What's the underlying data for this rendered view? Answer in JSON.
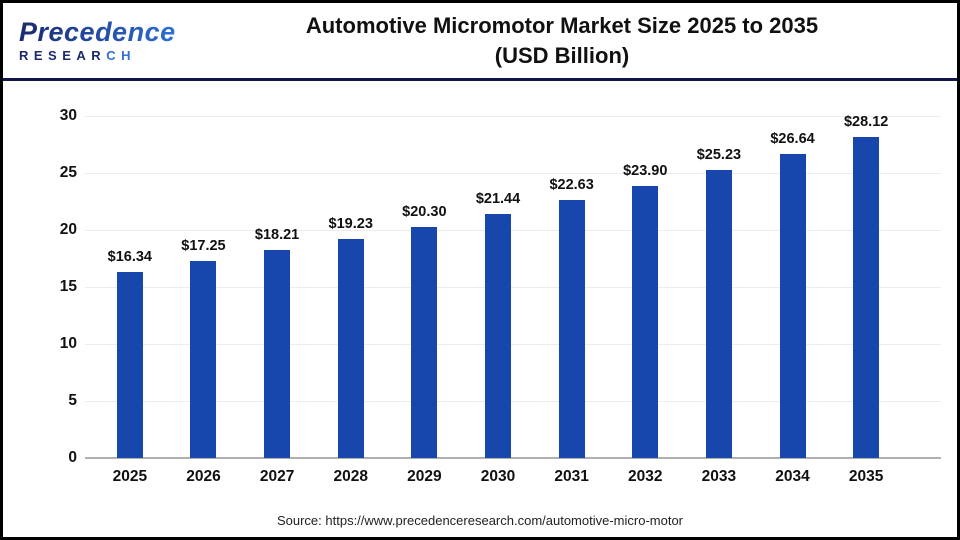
{
  "logo": {
    "name": "Precedence",
    "sub_dark": "RESEAR",
    "sub_light": "CH"
  },
  "title": {
    "line1": "Automotive Micromotor Market Size 2025 to 2035",
    "line2": "(USD Billion)"
  },
  "source": {
    "text": "Source: https://www.precedenceresearch.com/automotive-micro-motor"
  },
  "chart_data": {
    "type": "bar",
    "title": "Automotive Micromotor Market Size 2025 to 2035 (USD Billion)",
    "categories": [
      "2025",
      "2026",
      "2027",
      "2028",
      "2029",
      "2030",
      "2031",
      "2032",
      "2033",
      "2034",
      "2035"
    ],
    "values": [
      16.34,
      17.25,
      18.21,
      19.23,
      20.3,
      21.44,
      22.63,
      23.9,
      25.23,
      26.64,
      28.12
    ],
    "value_labels": [
      "$16.34",
      "$17.25",
      "$18.21",
      "$19.23",
      "$20.30",
      "$21.44",
      "$22.63",
      "$23.90",
      "$25.23",
      "$26.64",
      "$28.12"
    ],
    "xlabel": "",
    "ylabel": "",
    "ylim": [
      0,
      30
    ],
    "yticks": [
      0,
      5,
      10,
      15,
      20,
      25,
      30
    ],
    "grid": true,
    "legend": "none",
    "bar_color": "#1747ad",
    "currency_unit": "USD Billion"
  }
}
